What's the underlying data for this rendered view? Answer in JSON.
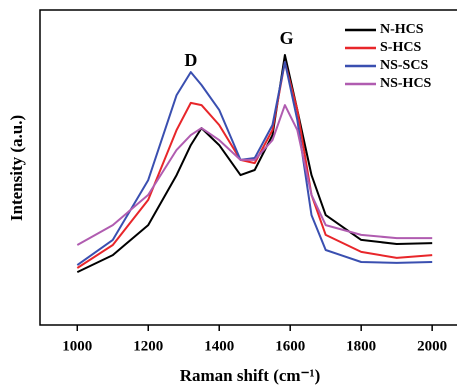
{
  "chart_data": {
    "type": "line",
    "x_label": "Raman shift (cm⁻¹)",
    "y_label": "Intensity (a.u.)",
    "x": [
      1000,
      1100,
      1200,
      1280,
      1320,
      1350,
      1400,
      1460,
      1500,
      1550,
      1585,
      1620,
      1660,
      1700,
      1800,
      1900,
      2000
    ],
    "series": [
      {
        "name": "N-HCS",
        "color": "#000000",
        "values": [
          16.8,
          22.2,
          31.7,
          47.6,
          57.1,
          62.5,
          57.1,
          47.6,
          49.2,
          60.3,
          85.7,
          68.3,
          47.6,
          34.9,
          27.0,
          25.7,
          26.0
        ]
      },
      {
        "name": "S-HCS",
        "color": "#e8262a",
        "values": [
          18.1,
          25.4,
          39.7,
          61.9,
          70.5,
          69.8,
          63.5,
          52.4,
          51.4,
          61.9,
          83.5,
          68.3,
          41.3,
          28.6,
          23.2,
          21.3,
          22.2
        ]
      },
      {
        "name": "NS-SCS",
        "color": "#3a4fb0",
        "values": [
          19.0,
          27.0,
          46.0,
          73.0,
          80.3,
          76.2,
          68.3,
          52.4,
          53.0,
          63.5,
          83.5,
          65.1,
          34.9,
          23.8,
          20.0,
          19.7,
          20.0
        ]
      },
      {
        "name": "NS-HCS",
        "color": "#b05cb0",
        "values": [
          25.4,
          31.7,
          41.3,
          55.6,
          60.3,
          62.5,
          58.7,
          52.4,
          52.4,
          58.7,
          69.8,
          61.9,
          41.3,
          31.7,
          28.6,
          27.6,
          27.6
        ]
      }
    ],
    "annotations": [
      {
        "text": "D",
        "x": 1320,
        "y": 83.5
      },
      {
        "text": "G",
        "x": 1590,
        "y": 90.5
      }
    ],
    "xlim": [
      895,
      2070
    ],
    "xticks": [
      1000,
      1200,
      1400,
      1600,
      1800,
      2000
    ],
    "ylim": [
      0,
      100
    ],
    "legend": "upper right"
  }
}
